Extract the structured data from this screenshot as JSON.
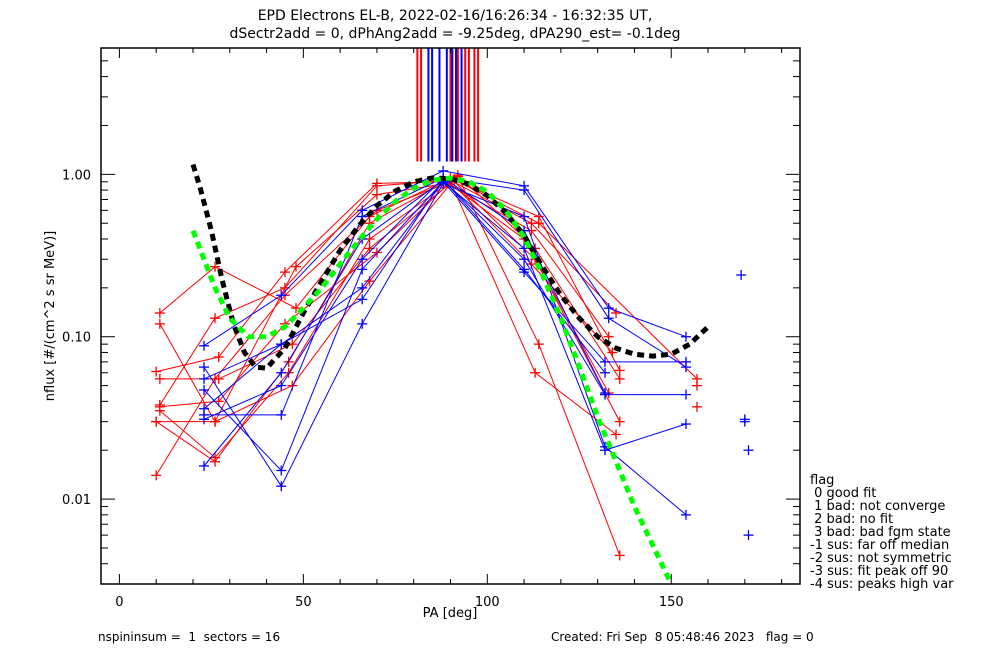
{
  "chart_data": {
    "type": "line",
    "title": "EPD Electrons EL-B, 2022-02-16/16:26:34 - 16:32:35 UT,",
    "subtitle": "dSectr2add = 0, dPhAng2add = -9.25deg, dPA290_est=  -0.1deg",
    "xlabel": "PA [deg]",
    "ylabel": "nflux [#/(cm^2 s sr MeV)]",
    "xlim": [
      -5,
      185
    ],
    "ylim": [
      0.003,
      6.0
    ],
    "yscale": "log",
    "xticks": [
      0,
      50,
      100,
      150
    ],
    "xtick_labels": [
      "0",
      "50",
      "100",
      "150"
    ],
    "yticks": [
      0.01,
      0.1,
      1.0
    ],
    "ytick_labels": [
      "0.01",
      "0.10",
      "1.00"
    ],
    "grid": false,
    "colors": {
      "red": "#ff0000",
      "blue": "#0000ff",
      "green": "#00ff00",
      "black": "#000000"
    },
    "peak_markers": {
      "red": [
        81,
        82,
        90,
        92,
        93,
        94,
        95,
        96.5,
        97.5
      ],
      "blue": [
        84,
        85,
        87,
        89,
        90.5,
        91.5,
        93
      ],
      "fmin": 1.2,
      "fmax": 6.0
    },
    "series": [
      {
        "name": "red-1",
        "color": "red",
        "x": [
          11,
          26,
          45,
          70,
          90,
          112,
          135
        ],
        "y": [
          0.038,
          0.13,
          0.2,
          0.85,
          0.92,
          0.5,
          0.14
        ]
      },
      {
        "name": "red-2",
        "color": "red",
        "x": [
          11,
          26,
          48,
          68,
          90,
          113,
          136
        ],
        "y": [
          0.14,
          0.27,
          0.15,
          0.55,
          0.95,
          0.3,
          0.03
        ]
      },
      {
        "name": "red-3",
        "color": "red",
        "x": [
          10,
          27,
          45,
          70,
          89,
          110,
          133
        ],
        "y": [
          0.061,
          0.075,
          0.25,
          0.88,
          0.9,
          0.4,
          0.045
        ]
      },
      {
        "name": "red-4",
        "color": "red",
        "x": [
          11,
          26,
          46,
          68,
          92,
          114,
          136
        ],
        "y": [
          0.035,
          0.018,
          0.06,
          0.4,
          0.97,
          0.09,
          0.0045
        ]
      },
      {
        "name": "red-5",
        "color": "red",
        "x": [
          10,
          26,
          45,
          70,
          90,
          113,
          135
        ],
        "y": [
          0.014,
          0.055,
          0.18,
          0.6,
          0.9,
          0.06,
          0.025
        ]
      },
      {
        "name": "red-6",
        "color": "red",
        "x": [
          11,
          27,
          47,
          68,
          91,
          114,
          136
        ],
        "y": [
          0.055,
          0.055,
          0.09,
          0.35,
          0.92,
          0.55,
          0.062
        ]
      },
      {
        "name": "red-7",
        "color": "red",
        "x": [
          11,
          26,
          48,
          70,
          89,
          112,
          133
        ],
        "y": [
          0.12,
          0.03,
          0.27,
          0.75,
          0.88,
          0.45,
          0.1
        ]
      },
      {
        "name": "red-8",
        "color": "red",
        "x": [
          10,
          26,
          46,
          68,
          92,
          113,
          136
        ],
        "y": [
          0.03,
          0.017,
          0.07,
          0.5,
          0.99,
          0.35,
          0.055
        ]
      },
      {
        "name": "red-9",
        "color": "red",
        "x": [
          11,
          27,
          45,
          70,
          90,
          112,
          134
        ],
        "y": [
          0.037,
          0.04,
          0.12,
          0.33,
          0.9,
          0.28,
          0.08
        ]
      },
      {
        "name": "red-10",
        "color": "red",
        "x": [
          10,
          26,
          47,
          68,
          91,
          114,
          157
        ],
        "y": [
          0.03,
          0.03,
          0.05,
          0.22,
          0.93,
          0.5,
          0.055
        ]
      },
      {
        "name": "blue-1",
        "color": "blue",
        "x": [
          23,
          44,
          66,
          88,
          110,
          133,
          154
        ],
        "y": [
          0.088,
          0.18,
          0.6,
          1.05,
          0.85,
          0.15,
          0.1
        ]
      },
      {
        "name": "blue-2",
        "color": "blue",
        "x": [
          23,
          44,
          66,
          88,
          110,
          133,
          154
        ],
        "y": [
          0.033,
          0.033,
          0.55,
          0.95,
          0.8,
          0.13,
          0.065
        ]
      },
      {
        "name": "blue-3",
        "color": "blue",
        "x": [
          23,
          44,
          66,
          88,
          110,
          132,
          154
        ],
        "y": [
          0.016,
          0.06,
          0.4,
          0.92,
          0.3,
          0.044,
          0.044
        ]
      },
      {
        "name": "blue-4",
        "color": "blue",
        "x": [
          23,
          44,
          66,
          88,
          110,
          132,
          154
        ],
        "y": [
          0.047,
          0.015,
          0.26,
          0.9,
          0.25,
          0.07,
          0.07
        ]
      },
      {
        "name": "blue-5",
        "color": "blue",
        "x": [
          23,
          44,
          66,
          88,
          110,
          132,
          154
        ],
        "y": [
          0.065,
          0.012,
          0.12,
          0.88,
          0.55,
          0.021,
          0.008
        ]
      },
      {
        "name": "blue-6",
        "color": "blue",
        "x": [
          23,
          44,
          66,
          88,
          110,
          132,
          154
        ],
        "y": [
          0.036,
          0.09,
          0.2,
          0.9,
          0.35,
          0.02,
          0.029
        ]
      },
      {
        "name": "blue-7",
        "color": "blue",
        "x": [
          23,
          44,
          66,
          88,
          110,
          132
        ],
        "y": [
          0.031,
          0.05,
          0.3,
          0.95,
          0.45,
          0.045
        ]
      },
      {
        "name": "blue-8",
        "color": "blue",
        "x": [
          23,
          44,
          66,
          88,
          110,
          132
        ],
        "y": [
          0.055,
          0.09,
          0.17,
          0.93,
          0.26,
          0.06
        ]
      }
    ],
    "outlier_points": [
      {
        "color": "red",
        "x": 157,
        "y": 0.05
      },
      {
        "color": "red",
        "x": 157,
        "y": 0.037
      },
      {
        "color": "blue",
        "x": 169,
        "y": 0.24
      },
      {
        "color": "blue",
        "x": 170,
        "y": 0.031
      },
      {
        "color": "blue",
        "x": 170,
        "y": 0.03
      },
      {
        "color": "blue",
        "x": 171,
        "y": 0.02
      },
      {
        "color": "blue",
        "x": 171,
        "y": 0.006
      }
    ],
    "fit_curves": [
      {
        "name": "black-fit",
        "color": "black",
        "dashed": true,
        "x": [
          20,
          22,
          25,
          28,
          31,
          34,
          37,
          40,
          45,
          50,
          55,
          60,
          65,
          70,
          75,
          80,
          85,
          90,
          95,
          100,
          105,
          110,
          115,
          120,
          125,
          130,
          135,
          140,
          145,
          150,
          155,
          160
        ],
        "y": [
          1.15,
          0.82,
          0.45,
          0.22,
          0.12,
          0.08,
          0.065,
          0.064,
          0.085,
          0.14,
          0.22,
          0.34,
          0.48,
          0.64,
          0.79,
          0.9,
          0.95,
          0.94,
          0.87,
          0.74,
          0.58,
          0.42,
          0.27,
          0.18,
          0.13,
          0.1,
          0.085,
          0.078,
          0.076,
          0.078,
          0.09,
          0.115
        ]
      },
      {
        "name": "green-fit",
        "color": "green",
        "dashed": true,
        "x": [
          20,
          23,
          26,
          30,
          35,
          40,
          45,
          50,
          55,
          60,
          65,
          70,
          75,
          80,
          85,
          90,
          95,
          100,
          105,
          110,
          115,
          120,
          125,
          130,
          135,
          140,
          145,
          150
        ],
        "y": [
          0.45,
          0.3,
          0.2,
          0.13,
          0.1,
          0.1,
          0.115,
          0.15,
          0.2,
          0.28,
          0.39,
          0.53,
          0.68,
          0.82,
          0.92,
          0.95,
          0.9,
          0.78,
          0.6,
          0.41,
          0.24,
          0.13,
          0.065,
          0.032,
          0.017,
          0.009,
          0.0052,
          0.003
        ]
      }
    ],
    "legend": {
      "title": "flag",
      "entries": [
        " 0 good fit",
        " 1 bad: not converge",
        " 2 bad: no fit",
        " 3 bad: bad fgm state",
        "-1 sus: far off median",
        "-2 sus: not symmetric",
        "-3 sus: fit peak off 90",
        "-4 sus: peaks high var"
      ],
      "placement": "right"
    }
  },
  "footer": {
    "left": "nspininsum =  1  sectors = 16",
    "right": "Created: Fri Sep  8 05:48:46 2023   flag = 0"
  }
}
